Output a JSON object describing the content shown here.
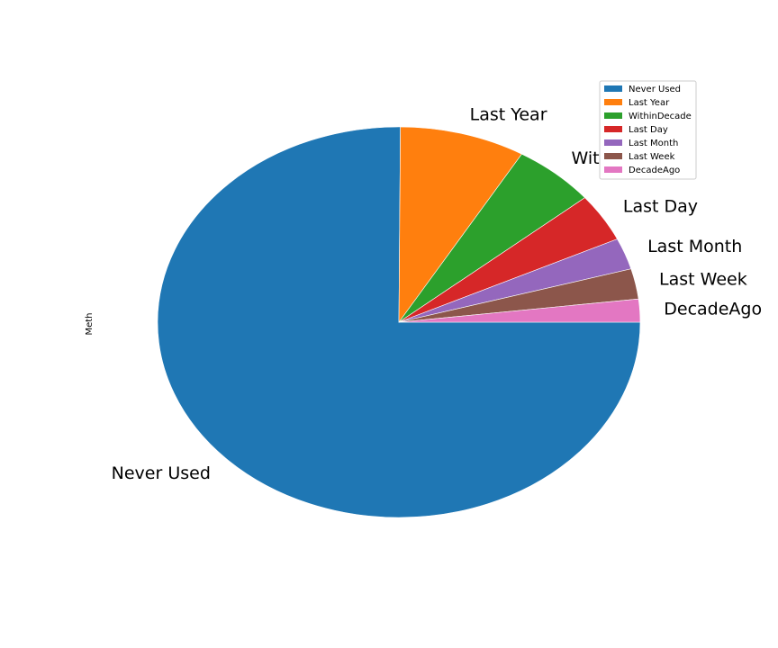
{
  "chart_data": {
    "type": "pie",
    "ylabel": "Meth",
    "start_angle_deg": 0,
    "direction": "clockwise-on-screen",
    "legend_placement": "top-right",
    "categories": [
      "Never Used",
      " Last Year",
      "WithinDecade",
      "Last Day",
      "Last Month",
      "Last Week",
      "DecadeAgo"
    ],
    "slice_labels": [
      "Never Used",
      "Last Year",
      "WithinDecade",
      "Last Day",
      "Last Month",
      "Last Week",
      "DecadeAgo"
    ],
    "values": [
      75.1,
      8.4,
      5.5,
      4.0,
      2.6,
      2.5,
      1.9
    ],
    "colors": [
      "#1f77b4",
      "#ff7f0e",
      "#2ca02c",
      "#d62728",
      "#9467bd",
      "#8c564b",
      "#e377c2"
    ]
  }
}
